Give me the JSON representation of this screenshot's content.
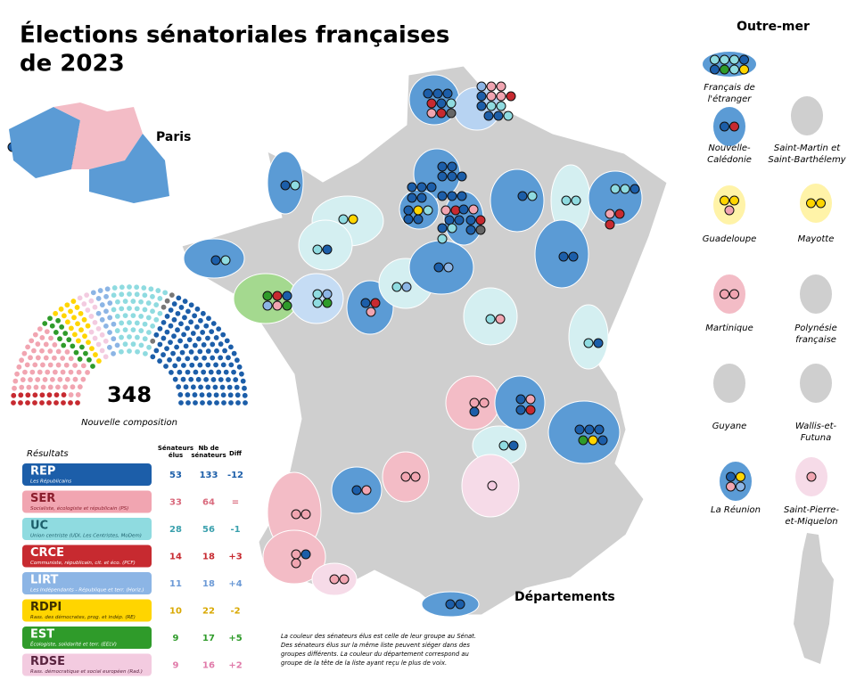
{
  "title": [
    "Élections sénatoriales françaises",
    "de 2023"
  ],
  "paris_label": "Paris",
  "mainland_label": "Départements",
  "overseas": {
    "title": "Outre-mer",
    "territories": [
      [
        "Français de",
        "l'étranger"
      ],
      [
        "Nouvelle-",
        "Calédonie"
      ],
      [
        "Saint-Martin et",
        "Saint-Barthélemy"
      ],
      [
        "Guadeloupe"
      ],
      [
        "Mayotte"
      ],
      [
        "Martinique"
      ],
      [
        "Polynésie",
        "française"
      ],
      [
        "Guyane"
      ],
      [
        "Wallis-et-",
        "Futuna"
      ],
      [
        "La Réunion"
      ],
      [
        "Saint-Pierre-",
        "et-Miquelon"
      ]
    ]
  },
  "hemicycle": {
    "total": 348,
    "caption": "Nouvelle composition"
  },
  "results": {
    "caption": "Résultats",
    "headers": [
      [
        "Sénateurs",
        "élus"
      ],
      [
        "Nb de",
        "sénateurs"
      ],
      [
        "Diff"
      ]
    ],
    "rows": [
      {
        "abbr": "REP",
        "name": "Les Républicains",
        "color": "#1c5ea9",
        "label_color": "#ffffff",
        "number_color": "#1c5ea9",
        "elected": 53,
        "seats": 133,
        "diff": "-12"
      },
      {
        "abbr": "SER",
        "name": "Socialiste, écologiste et républicain (PS)",
        "color": "#f1a5b1",
        "label_color": "#8a1d2c",
        "number_color": "#d9697c",
        "elected": 33,
        "seats": 64,
        "diff": "="
      },
      {
        "abbr": "UC",
        "name": "Union centriste (UDI, Les Centristes, MoDem)",
        "color": "#8fdbe0",
        "label_color": "#1c5e6a",
        "number_color": "#3aa0ad",
        "elected": 28,
        "seats": 56,
        "diff": "-1"
      },
      {
        "abbr": "CRCE",
        "name": "Communiste, républicain, cit. et éco. (PCF)",
        "color": "#c72a30",
        "label_color": "#ffffff",
        "number_color": "#c72a30",
        "elected": 14,
        "seats": 18,
        "diff": "+3"
      },
      {
        "abbr": "LIRT",
        "name": "Les Indépendants - République et terr. (Horiz.)",
        "color": "#8cb5e5",
        "label_color": "#ffffff",
        "number_color": "#6c9ad6",
        "elected": 11,
        "seats": 18,
        "diff": "+4"
      },
      {
        "abbr": "RDPI",
        "name": "Rass. des démocrates, prog. et indép. (RE)",
        "color": "#ffd500",
        "label_color": "#3d3000",
        "number_color": "#d9a800",
        "elected": 10,
        "seats": 22,
        "diff": "-2"
      },
      {
        "abbr": "EST",
        "name": "Écologiste, solidarité et terr. (EELV)",
        "color": "#2f9b2a",
        "label_color": "#ffffff",
        "number_color": "#2f9b2a",
        "elected": 9,
        "seats": 17,
        "diff": "+5"
      },
      {
        "abbr": "RDSE",
        "name": "Rass. démocratique et social européen (Rad.)",
        "color": "#f3cbe0",
        "label_color": "#5a2440",
        "number_color": "#e07aa9",
        "elected": 9,
        "seats": 16,
        "diff": "+2"
      }
    ]
  },
  "note": [
    "La couleur des sénateurs élus est celle de leur groupe au Sénat.",
    "Des sénateurs élus sur la même liste peuvent siéger dans des",
    "groupes différents. La couleur du département correspond au",
    "groupe de la tête de la liste ayant reçu le plus de voix."
  ]
}
